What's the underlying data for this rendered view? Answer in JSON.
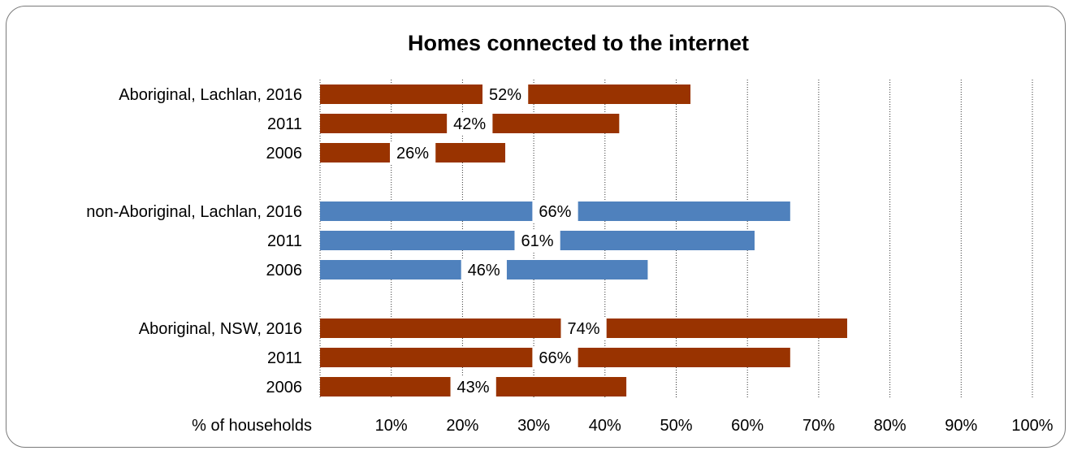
{
  "chart_data": {
    "type": "bar",
    "orientation": "horizontal",
    "title": "Homes connected to the internet",
    "xlabel": "% of households",
    "xlim": [
      0,
      100
    ],
    "x_ticks": [
      "10%",
      "20%",
      "30%",
      "40%",
      "50%",
      "60%",
      "70%",
      "80%",
      "90%",
      "100%"
    ],
    "grid": true,
    "colors": {
      "aboriginal": "#993300",
      "non_aboriginal": "#4f81bd"
    },
    "groups": [
      {
        "color_key": "aboriginal",
        "bars": [
          {
            "label": "Aboriginal, Lachlan, 2016",
            "value": 52,
            "value_label": "52%"
          },
          {
            "label": "2011",
            "value": 42,
            "value_label": "42%"
          },
          {
            "label": "2006",
            "value": 26,
            "value_label": "26%"
          }
        ]
      },
      {
        "color_key": "non_aboriginal",
        "bars": [
          {
            "label": "non-Aboriginal, Lachlan, 2016",
            "value": 66,
            "value_label": "66%"
          },
          {
            "label": "2011",
            "value": 61,
            "value_label": "61%"
          },
          {
            "label": "2006",
            "value": 46,
            "value_label": "46%"
          }
        ]
      },
      {
        "color_key": "aboriginal",
        "bars": [
          {
            "label": "Aboriginal, NSW, 2016",
            "value": 74,
            "value_label": "74%"
          },
          {
            "label": "2011",
            "value": 66,
            "value_label": "66%"
          },
          {
            "label": "2006",
            "value": 43,
            "value_label": "43%"
          }
        ]
      }
    ]
  }
}
